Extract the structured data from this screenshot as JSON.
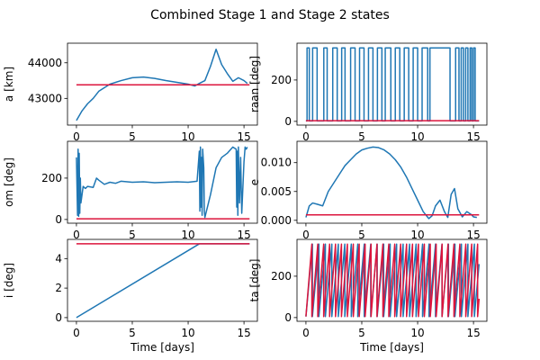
{
  "figure": {
    "title": "Combined Stage 1 and Stage 2 states"
  },
  "colors": {
    "stage1": "#1f77b4",
    "stage2": "#dc143c"
  },
  "chart_data": [
    {
      "type": "line",
      "panel": "a",
      "ylabel": "a [km]",
      "xlabel": "",
      "xlim": [
        -0.8,
        16.2
      ],
      "ylim": [
        42250,
        44550
      ],
      "xticks": [
        0,
        5,
        10,
        15
      ],
      "yticks": [
        43000,
        44000
      ],
      "grid": false,
      "series": [
        {
          "color": "stage1",
          "x": [
            0,
            0.5,
            1,
            1.5,
            2,
            3,
            4,
            5,
            6,
            7,
            8,
            9,
            10,
            10.6,
            11,
            11.5,
            12,
            12.5,
            13,
            13.5,
            14,
            14.5,
            15,
            15.3
          ],
          "y": [
            42380,
            42650,
            42850,
            43000,
            43200,
            43400,
            43500,
            43580,
            43600,
            43560,
            43500,
            43450,
            43400,
            43350,
            43420,
            43500,
            43900,
            44380,
            43950,
            43700,
            43480,
            43580,
            43500,
            43420
          ]
        },
        {
          "color": "stage2",
          "x": [
            0,
            15.5
          ],
          "y": [
            43380,
            43380
          ]
        }
      ]
    },
    {
      "type": "line",
      "panel": "raan",
      "ylabel": "raan [deg]",
      "xlabel": "",
      "xlim": [
        -0.8,
        16.2
      ],
      "ylim": [
        -18,
        378
      ],
      "xticks": [
        0,
        5,
        10,
        15
      ],
      "yticks": [
        0,
        200
      ],
      "grid": false,
      "series": [
        {
          "color": "stage1",
          "x": [],
          "y": [],
          "pattern": "square_wave",
          "toggles": [
            0.1,
            0.3,
            0.6,
            1.0,
            1.6,
            1.9,
            2.4,
            2.8,
            3.2,
            3.5,
            4.0,
            4.4,
            4.8,
            5.2,
            5.6,
            6.0,
            6.4,
            6.8,
            7.1,
            7.6,
            8.0,
            8.4,
            8.8,
            9.2,
            9.6,
            10.0,
            10.4,
            10.9,
            11.1,
            12.9,
            13.4,
            13.7,
            13.9,
            14.1,
            14.3,
            14.5,
            14.7,
            14.85,
            15.0,
            15.15
          ],
          "low": 2,
          "high": 355
        },
        {
          "color": "stage2",
          "x": [
            0,
            15.5
          ],
          "y": [
            3,
            3
          ]
        }
      ]
    },
    {
      "type": "line",
      "panel": "om",
      "ylabel": "om [deg]",
      "xlabel": "",
      "xlim": [
        -0.8,
        16.2
      ],
      "ylim": [
        -18,
        378
      ],
      "xticks": [
        0,
        5,
        10,
        15
      ],
      "yticks": [
        0,
        200
      ],
      "grid": false,
      "series": [
        {
          "color": "stage1",
          "x": [
            0,
            0.1,
            0.15,
            0.2,
            0.25,
            0.3,
            0.35,
            0.4,
            0.6,
            0.8,
            1.0,
            1.5,
            1.8,
            2.0,
            2.5,
            3.0,
            3.5,
            4.0,
            5.0,
            6.0,
            7.0,
            8.0,
            9.0,
            10.0,
            10.8,
            11.0,
            11.05,
            11.1,
            11.15,
            11.2,
            11.25,
            11.3,
            11.4,
            11.45,
            11.5,
            12.0,
            12.5,
            13.0,
            13.5,
            14.0,
            14.3,
            14.35,
            14.4,
            14.45,
            14.5,
            14.6,
            14.7,
            14.8,
            15.0,
            15.1,
            15.2,
            15.3
          ],
          "y": [
            300,
            20,
            340,
            15,
            320,
            30,
            200,
            80,
            160,
            150,
            160,
            155,
            200,
            190,
            170,
            180,
            175,
            185,
            180,
            182,
            178,
            180,
            182,
            180,
            185,
            330,
            40,
            350,
            60,
            300,
            20,
            340,
            250,
            40,
            10,
            120,
            250,
            300,
            320,
            350,
            340,
            60,
            330,
            20,
            350,
            80,
            300,
            30,
            280,
            350,
            340,
            350
          ]
        },
        {
          "color": "stage2",
          "x": [
            0,
            15.5
          ],
          "y": [
            3,
            3
          ]
        }
      ]
    },
    {
      "type": "line",
      "panel": "e",
      "ylabel": "e",
      "xlabel": "",
      "xlim": [
        -0.8,
        16.2
      ],
      "ylim": [
        -0.0005,
        0.0137
      ],
      "xticks": [
        0,
        5,
        10,
        15
      ],
      "yticks": [
        0.0,
        0.005,
        0.01
      ],
      "ytick_labels": [
        "0.000",
        "0.005",
        "0.010"
      ],
      "grid": false,
      "series": [
        {
          "color": "stage1",
          "x": [
            0,
            0.3,
            0.6,
            1.0,
            1.5,
            2.0,
            2.5,
            3.0,
            3.5,
            4.0,
            4.5,
            5.0,
            5.5,
            6.0,
            6.5,
            7.0,
            7.5,
            8.0,
            8.5,
            9.0,
            9.5,
            10.0,
            10.5,
            11.0,
            11.3,
            11.6,
            12.0,
            12.4,
            12.7,
            13.0,
            13.3,
            13.6,
            14.0,
            14.4,
            14.8,
            15.0,
            15.3
          ],
          "y": [
            0.0005,
            0.0025,
            0.003,
            0.0028,
            0.0025,
            0.005,
            0.0065,
            0.008,
            0.0095,
            0.0105,
            0.0115,
            0.0122,
            0.0125,
            0.0127,
            0.0126,
            0.0122,
            0.0115,
            0.0105,
            0.0092,
            0.0075,
            0.0055,
            0.0035,
            0.0015,
            0.0003,
            0.0008,
            0.0025,
            0.0035,
            0.0015,
            0.0005,
            0.0045,
            0.0055,
            0.002,
            0.0006,
            0.0015,
            0.001,
            0.0006,
            0.0005
          ]
        },
        {
          "color": "stage2",
          "x": [
            0,
            15.5
          ],
          "y": [
            0.00095,
            0.00095
          ]
        }
      ]
    },
    {
      "type": "line",
      "panel": "i",
      "ylabel": "i [deg]",
      "xlabel": "Time [days]",
      "xlim": [
        -0.8,
        16.2
      ],
      "ylim": [
        -0.25,
        5.3
      ],
      "xticks": [
        0,
        5,
        10,
        15
      ],
      "yticks": [
        0,
        2,
        4
      ],
      "grid": false,
      "series": [
        {
          "color": "stage1",
          "x": [
            0,
            11,
            15.5
          ],
          "y": [
            0.0,
            5.0,
            5.0
          ]
        },
        {
          "color": "stage2",
          "x": [
            0,
            15.5
          ],
          "y": [
            5.0,
            5.0
          ]
        }
      ]
    },
    {
      "type": "line",
      "panel": "ta",
      "ylabel": "ta [deg]",
      "xlabel": "Time [days]",
      "xlim": [
        -0.8,
        16.2
      ],
      "ylim": [
        -18,
        378
      ],
      "xticks": [
        0,
        5,
        10,
        15
      ],
      "yticks": [
        0,
        200
      ],
      "grid": false,
      "series": [
        {
          "color": "stage1",
          "x": [],
          "y": [],
          "pattern": "sawtooth",
          "start": 0,
          "end": 15.5,
          "period": 0.58,
          "low": 5,
          "high": 355
        },
        {
          "color": "stage2",
          "x": [],
          "y": [],
          "pattern": "sawtooth",
          "start": 0,
          "end": 15.5,
          "period": 0.53,
          "low": 5,
          "high": 355
        }
      ]
    }
  ]
}
